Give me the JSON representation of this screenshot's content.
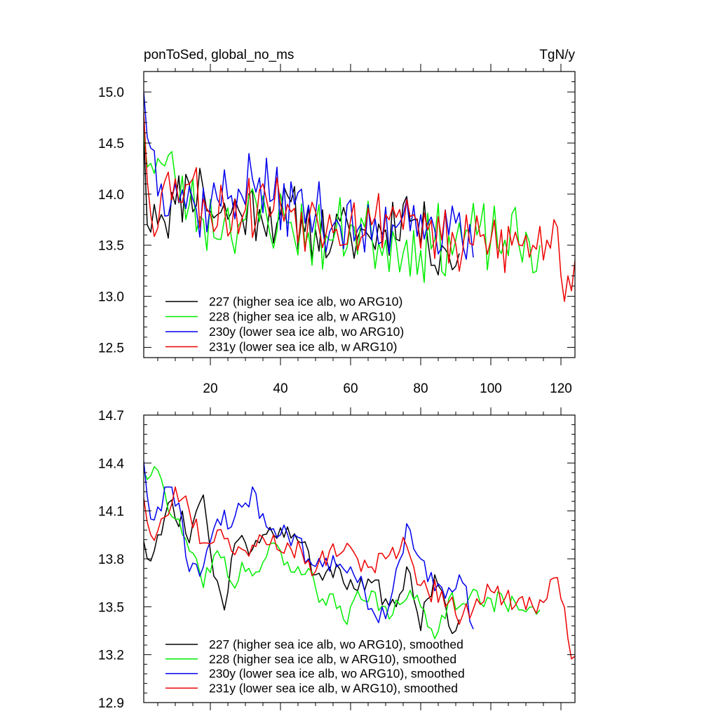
{
  "header": {
    "title_left": "ponToSed, global_no_ms",
    "title_right": "TgN/y"
  },
  "colors": {
    "227": "#000000",
    "228": "#00ee00",
    "230y": "#0000ee",
    "231y": "#ee0000"
  },
  "chart_data": [
    {
      "type": "line",
      "title": "ponToSed, global_no_ms",
      "unit": "TgN/y",
      "xlim": [
        1,
        124
      ],
      "ylim": [
        12.4,
        15.2
      ],
      "xticks": [
        20,
        40,
        60,
        80,
        100,
        120
      ],
      "xtick_labels": [
        "20",
        "40",
        "60",
        "80",
        "100",
        "120"
      ],
      "yticks": [
        12.5,
        13.0,
        13.5,
        14.0,
        14.5,
        15.0
      ],
      "ytick_labels": [
        "12.5",
        "13.0",
        "13.5",
        "14.0",
        "14.5",
        "15.0"
      ],
      "legend_position": "bottom-left",
      "series": [
        {
          "name": "227 (higher sea ice alb, wo ARG10)",
          "key": "227",
          "start": 1,
          "count": 91,
          "amplitude": 0.33,
          "seed": 11,
          "anchors": [
            [
              1,
              14.6
            ],
            [
              2,
              13.7
            ],
            [
              4,
              13.9
            ],
            [
              6,
              13.8
            ],
            [
              10,
              13.9
            ],
            [
              14,
              14.1
            ],
            [
              18,
              14.05
            ],
            [
              22,
              13.8
            ],
            [
              28,
              13.85
            ],
            [
              34,
              13.85
            ],
            [
              40,
              13.8
            ],
            [
              46,
              13.75
            ],
            [
              50,
              13.65
            ],
            [
              55,
              13.55
            ],
            [
              60,
              13.6
            ],
            [
              65,
              13.6
            ],
            [
              70,
              13.65
            ],
            [
              75,
              13.9
            ],
            [
              78,
              13.75
            ],
            [
              82,
              13.55
            ],
            [
              86,
              13.5
            ],
            [
              88,
              13.4
            ],
            [
              91,
              13.42
            ]
          ]
        },
        {
          "name": "228 (higher sea ice alb, w ARG10)",
          "key": "228",
          "start": 1,
          "count": 114,
          "amplitude": 0.36,
          "seed": 23,
          "anchors": [
            [
              1,
              14.6
            ],
            [
              3,
              14.3
            ],
            [
              6,
              14.3
            ],
            [
              10,
              14.15
            ],
            [
              14,
              13.9
            ],
            [
              18,
              13.75
            ],
            [
              24,
              13.75
            ],
            [
              30,
              13.75
            ],
            [
              36,
              13.8
            ],
            [
              42,
              13.72
            ],
            [
              48,
              13.62
            ],
            [
              54,
              13.55
            ],
            [
              60,
              13.7
            ],
            [
              66,
              13.6
            ],
            [
              70,
              13.55
            ],
            [
              76,
              13.55
            ],
            [
              80,
              13.45
            ],
            [
              84,
              13.55
            ],
            [
              90,
              13.55
            ],
            [
              96,
              13.6
            ],
            [
              100,
              13.55
            ],
            [
              104,
              13.55
            ],
            [
              108,
              13.5
            ],
            [
              114,
              13.5
            ]
          ]
        },
        {
          "name": "230y (lower sea ice alb, wo ARG10)",
          "key": "230y",
          "start": 1,
          "count": 95,
          "amplitude": 0.34,
          "seed": 37,
          "anchors": [
            [
              1,
              15.0
            ],
            [
              3,
              14.45
            ],
            [
              6,
              14.1
            ],
            [
              10,
              14.1
            ],
            [
              16,
              13.85
            ],
            [
              22,
              13.95
            ],
            [
              28,
              14.05
            ],
            [
              32,
              14.15
            ],
            [
              38,
              13.95
            ],
            [
              44,
              13.9
            ],
            [
              50,
              13.8
            ],
            [
              56,
              13.75
            ],
            [
              62,
              13.65
            ],
            [
              66,
              13.55
            ],
            [
              72,
              13.7
            ],
            [
              76,
              13.95
            ],
            [
              80,
              13.8
            ],
            [
              84,
              13.65
            ],
            [
              88,
              13.6
            ],
            [
              92,
              13.5
            ],
            [
              95,
              13.38
            ]
          ]
        },
        {
          "name": "231y (lower sea ice alb, w ARG10)",
          "key": "231y",
          "start": 1,
          "count": 124,
          "amplitude": 0.34,
          "seed": 53,
          "anchors": [
            [
              1,
              14.8
            ],
            [
              3,
              13.8
            ],
            [
              6,
              14.0
            ],
            [
              10,
              14.15
            ],
            [
              14,
              14.1
            ],
            [
              18,
              13.95
            ],
            [
              24,
              13.85
            ],
            [
              30,
              13.85
            ],
            [
              36,
              13.95
            ],
            [
              42,
              13.9
            ],
            [
              48,
              13.75
            ],
            [
              54,
              13.8
            ],
            [
              60,
              13.75
            ],
            [
              66,
              13.7
            ],
            [
              70,
              13.8
            ],
            [
              74,
              13.85
            ],
            [
              78,
              13.8
            ],
            [
              82,
              13.65
            ],
            [
              86,
              13.55
            ],
            [
              92,
              13.45
            ],
            [
              100,
              13.55
            ],
            [
              106,
              13.5
            ],
            [
              112,
              13.5
            ],
            [
              116,
              13.55
            ],
            [
              118,
              13.75
            ],
            [
              120,
              13.2
            ],
            [
              121,
              12.95
            ],
            [
              122,
              13.2
            ],
            [
              124,
              13.35
            ]
          ]
        }
      ]
    },
    {
      "type": "line",
      "xlim": [
        1,
        124
      ],
      "ylim": [
        12.9,
        14.7
      ],
      "xticks": [
        20,
        40,
        60,
        80,
        100,
        120
      ],
      "yticks": [
        12.9,
        13.2,
        13.5,
        13.8,
        14.1,
        14.4,
        14.7
      ],
      "ytick_labels": [
        "12.9",
        "13.2",
        "13.5",
        "13.8",
        "14.1",
        "14.4",
        "14.7"
      ],
      "legend_position": "bottom-left",
      "series": [
        {
          "name": "227 (higher sea ice alb, wo ARG10), smoothed",
          "key": "227",
          "start": 1,
          "count": 91,
          "amplitude": 0.08,
          "seed": 61,
          "anchors": [
            [
              1,
              13.91
            ],
            [
              2,
              13.8
            ],
            [
              4,
              13.85
            ],
            [
              6,
              13.95
            ],
            [
              8,
              14.15
            ],
            [
              10,
              14.05
            ],
            [
              12,
              14.1
            ],
            [
              14,
              13.9
            ],
            [
              16,
              14.1
            ],
            [
              18,
              14.2
            ],
            [
              20,
              13.85
            ],
            [
              24,
              13.48
            ],
            [
              26,
              13.8
            ],
            [
              30,
              13.9
            ],
            [
              34,
              13.9
            ],
            [
              38,
              13.95
            ],
            [
              42,
              14.0
            ],
            [
              46,
              13.9
            ],
            [
              50,
              13.7
            ],
            [
              54,
              13.75
            ],
            [
              58,
              13.65
            ],
            [
              62,
              13.6
            ],
            [
              66,
              13.65
            ],
            [
              70,
              13.55
            ],
            [
              73,
              13.5
            ],
            [
              76,
              13.75
            ],
            [
              78,
              13.55
            ],
            [
              80,
              13.35
            ],
            [
              82,
              13.55
            ],
            [
              84,
              13.7
            ],
            [
              86,
              13.6
            ],
            [
              88,
              13.38
            ],
            [
              90,
              13.35
            ],
            [
              91,
              13.42
            ]
          ]
        },
        {
          "name": "228 (higher sea ice alb, w ARG10), smoothed",
          "key": "228",
          "start": 1,
          "count": 114,
          "amplitude": 0.08,
          "seed": 73,
          "anchors": [
            [
              1,
              14.35
            ],
            [
              3,
              14.32
            ],
            [
              6,
              14.3
            ],
            [
              10,
              14.05
            ],
            [
              14,
              13.85
            ],
            [
              18,
              13.62
            ],
            [
              22,
              13.85
            ],
            [
              26,
              13.65
            ],
            [
              30,
              13.72
            ],
            [
              34,
              13.72
            ],
            [
              38,
              13.9
            ],
            [
              42,
              13.78
            ],
            [
              46,
              13.7
            ],
            [
              50,
              13.62
            ],
            [
              52,
              13.55
            ],
            [
              55,
              13.58
            ],
            [
              58,
              13.42
            ],
            [
              62,
              13.6
            ],
            [
              66,
              13.6
            ],
            [
              70,
              13.5
            ],
            [
              72,
              13.45
            ],
            [
              76,
              13.55
            ],
            [
              80,
              13.5
            ],
            [
              84,
              13.3
            ],
            [
              88,
              13.55
            ],
            [
              92,
              13.52
            ],
            [
              96,
              13.6
            ],
            [
              100,
              13.55
            ],
            [
              104,
              13.52
            ],
            [
              108,
              13.48
            ],
            [
              112,
              13.5
            ],
            [
              114,
              13.48
            ]
          ]
        },
        {
          "name": "230y (lower sea ice alb, wo ARG10), smoothed",
          "key": "230y",
          "start": 1,
          "count": 95,
          "amplitude": 0.08,
          "seed": 89,
          "anchors": [
            [
              1,
              14.41
            ],
            [
              3,
              14.05
            ],
            [
              6,
              14.1
            ],
            [
              8,
              14.25
            ],
            [
              11,
              14.15
            ],
            [
              14,
              13.72
            ],
            [
              18,
              13.75
            ],
            [
              22,
              14.05
            ],
            [
              26,
              14.0
            ],
            [
              30,
              14.15
            ],
            [
              32,
              14.25
            ],
            [
              36,
              14.0
            ],
            [
              40,
              13.95
            ],
            [
              44,
              13.95
            ],
            [
              48,
              13.8
            ],
            [
              52,
              13.75
            ],
            [
              56,
              13.75
            ],
            [
              60,
              13.75
            ],
            [
              64,
              13.6
            ],
            [
              68,
              13.4
            ],
            [
              72,
              13.6
            ],
            [
              76,
              14.02
            ],
            [
              80,
              13.8
            ],
            [
              84,
              13.6
            ],
            [
              88,
              13.62
            ],
            [
              92,
              13.65
            ],
            [
              95,
              13.36
            ]
          ]
        },
        {
          "name": "231y (lower sea ice alb, w ARG10), smoothed",
          "key": "231y",
          "start": 1,
          "count": 124,
          "amplitude": 0.08,
          "seed": 97,
          "anchors": [
            [
              1,
              14.18
            ],
            [
              3,
              13.95
            ],
            [
              6,
              14.05
            ],
            [
              10,
              14.25
            ],
            [
              14,
              14.1
            ],
            [
              18,
              13.9
            ],
            [
              22,
              13.98
            ],
            [
              26,
              13.85
            ],
            [
              30,
              13.85
            ],
            [
              34,
              13.95
            ],
            [
              38,
              13.95
            ],
            [
              42,
              13.9
            ],
            [
              46,
              13.85
            ],
            [
              50,
              13.72
            ],
            [
              54,
              13.85
            ],
            [
              58,
              13.85
            ],
            [
              62,
              13.8
            ],
            [
              66,
              13.75
            ],
            [
              70,
              13.8
            ],
            [
              74,
              13.85
            ],
            [
              76,
              13.88
            ],
            [
              78,
              13.75
            ],
            [
              82,
              13.6
            ],
            [
              86,
              13.6
            ],
            [
              90,
              13.45
            ],
            [
              92,
              13.45
            ],
            [
              96,
              13.55
            ],
            [
              100,
              13.6
            ],
            [
              104,
              13.55
            ],
            [
              108,
              13.55
            ],
            [
              112,
              13.5
            ],
            [
              116,
              13.55
            ],
            [
              118,
              13.68
            ],
            [
              120,
              13.55
            ],
            [
              122,
              13.3
            ],
            [
              124,
              13.19
            ]
          ]
        }
      ]
    }
  ]
}
